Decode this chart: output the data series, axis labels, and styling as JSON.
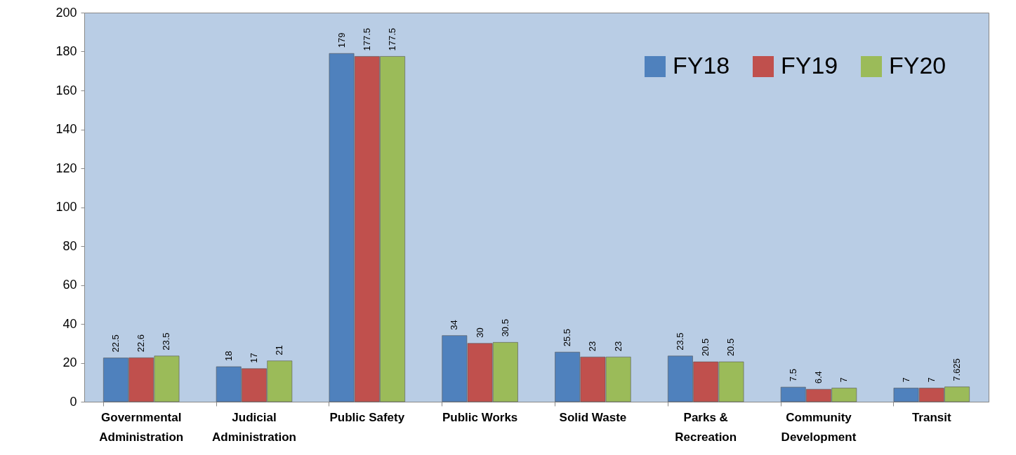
{
  "chart_data": {
    "type": "bar",
    "categories": [
      "Governmental Administration",
      "Judicial Administration",
      "Public Safety",
      "Public Works",
      "Solid Waste",
      "Parks & Recreation",
      "Community Development",
      "Transit"
    ],
    "series": [
      {
        "name": "FY18",
        "color": "#4f81bd",
        "values": [
          22.5,
          18,
          179,
          34,
          25.5,
          23.5,
          7.5,
          7
        ]
      },
      {
        "name": "FY19",
        "color": "#c0504d",
        "values": [
          22.6,
          17,
          177.5,
          30,
          23,
          20.5,
          6.4,
          7
        ]
      },
      {
        "name": "FY20",
        "color": "#9bbb59",
        "values": [
          23.5,
          21,
          177.5,
          30.5,
          23,
          20.5,
          7,
          7.625
        ]
      }
    ],
    "ylim": [
      0,
      200
    ],
    "yticks": [
      0,
      20,
      40,
      60,
      80,
      100,
      120,
      140,
      160,
      180,
      200
    ],
    "grid": false,
    "legend": "top right",
    "data_labels": true
  }
}
